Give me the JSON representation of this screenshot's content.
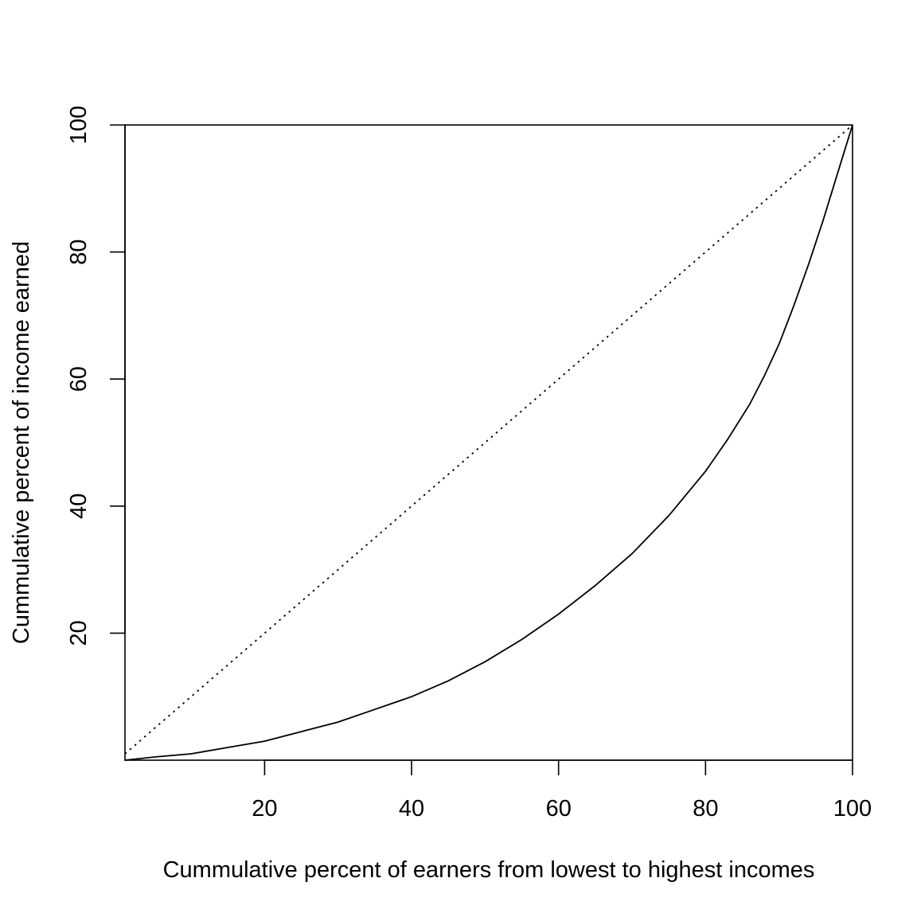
{
  "chart_data": {
    "type": "line",
    "title": "",
    "xlabel": "Cummulative percent of earners from lowest to highest incomes",
    "ylabel": "Cummulative percent of income earned",
    "xlim": [
      1,
      100
    ],
    "ylim": [
      0,
      100
    ],
    "x_ticks": [
      20,
      40,
      60,
      80,
      100
    ],
    "y_ticks": [
      20,
      40,
      60,
      80,
      100
    ],
    "grid": false,
    "legend": "none",
    "colors": {
      "line": "#000000",
      "frame": "#000000"
    },
    "series": [
      {
        "style": "dotted",
        "x": [
          1,
          100
        ],
        "y": [
          1,
          100
        ]
      },
      {
        "style": "solid",
        "x": [
          1,
          5,
          10,
          15,
          20,
          25,
          30,
          35,
          40,
          45,
          50,
          55,
          60,
          65,
          70,
          75,
          80,
          83,
          86,
          88,
          90,
          92,
          94,
          96,
          98,
          100
        ],
        "y": [
          0,
          0.5,
          1,
          2,
          3,
          4.5,
          6,
          8,
          10,
          12.5,
          15.5,
          19,
          23,
          27.5,
          32.5,
          38.5,
          45.5,
          50.5,
          56,
          60.5,
          65.5,
          71.5,
          78,
          85,
          92.5,
          100
        ]
      }
    ]
  }
}
